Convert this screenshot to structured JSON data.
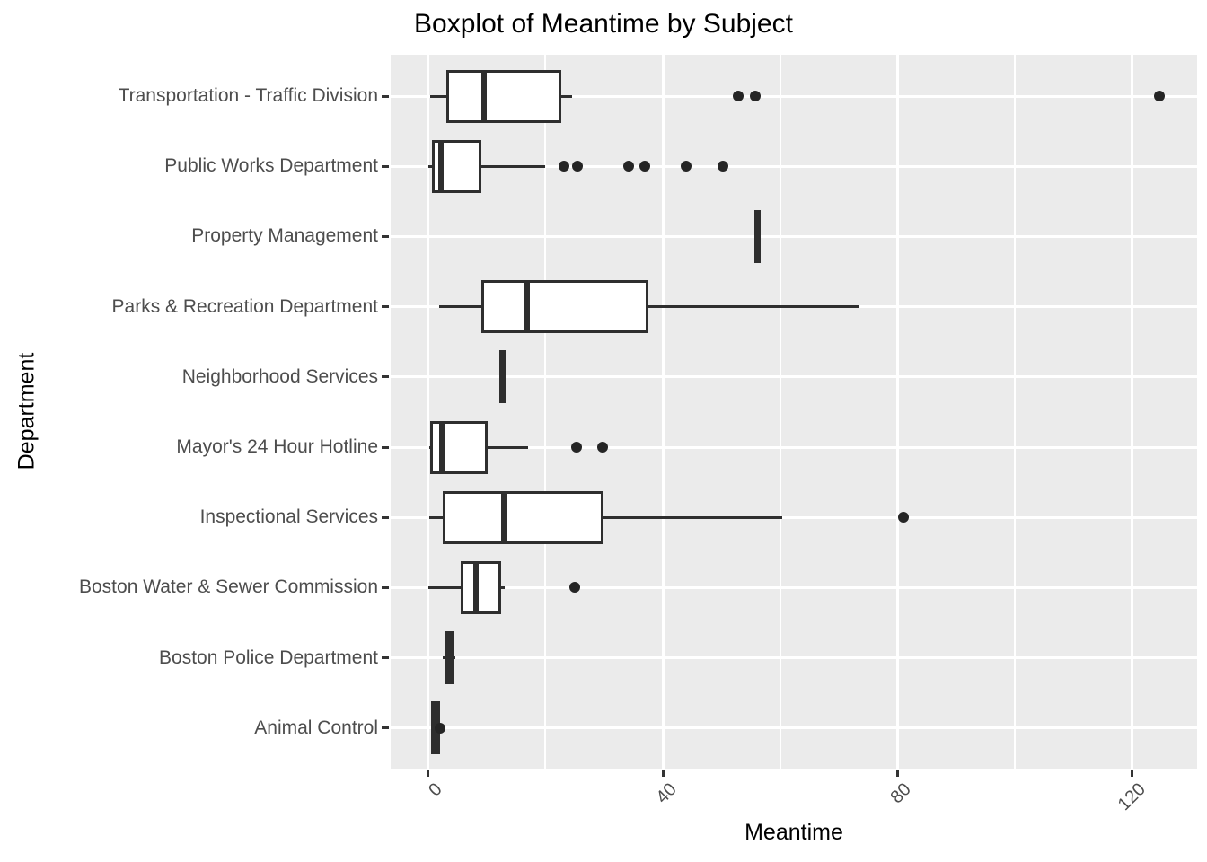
{
  "chart_data": {
    "type": "boxplot",
    "orientation": "horizontal",
    "title": "Boxplot of Meantime by Subject",
    "xlabel": "Meantime",
    "ylabel": "Department",
    "xlim": [
      -6.4,
      131.1
    ],
    "x_major_ticks": [
      0,
      40,
      80,
      120
    ],
    "x_major_tick_labels": [
      "0",
      "40",
      "80",
      "120"
    ],
    "x_minor_gridlines": [
      20,
      60,
      100
    ],
    "grid": true,
    "legend": "none",
    "categories_top_to_bottom": [
      "Transportation - Traffic Division",
      "Public Works Department",
      "Property Management",
      "Parks & Recreation Department",
      "Neighborhood Services",
      "Mayor's 24 Hour Hotline",
      "Inspectional Services",
      "Boston Water & Sewer Commission",
      "Boston Police Department",
      "Animal Control"
    ],
    "series": [
      {
        "category": "Transportation - Traffic Division",
        "min": 0.3,
        "q1": 3.1,
        "median": 9.5,
        "q3": 22.7,
        "max": 24.5,
        "outliers": [
          52.8,
          55.8,
          124.7
        ]
      },
      {
        "category": "Public Works Department",
        "min": 0.1,
        "q1": 0.6,
        "median": 2.1,
        "q3": 9.0,
        "max": 19.9,
        "outliers": [
          23.2,
          25.5,
          34.1,
          37.0,
          43.9,
          50.3
        ]
      },
      {
        "category": "Property Management",
        "min": 56.1,
        "q1": 56.1,
        "median": 56.1,
        "q3": 56.1,
        "max": 56.1,
        "outliers": []
      },
      {
        "category": "Parks & Recreation Department",
        "min": 1.9,
        "q1": 9.0,
        "median": 16.8,
        "q3": 37.6,
        "max": 73.6,
        "outliers": []
      },
      {
        "category": "Neighborhood Services",
        "min": 12.7,
        "q1": 12.7,
        "median": 12.7,
        "q3": 12.7,
        "max": 12.7,
        "outliers": []
      },
      {
        "category": "Mayor's 24 Hour Hotline",
        "min": 0.2,
        "q1": 0.3,
        "median": 2.3,
        "q3": 10.1,
        "max": 17.1,
        "outliers": [
          25.3,
          29.7
        ]
      },
      {
        "category": "Inspectional Services",
        "min": 0.2,
        "q1": 2.5,
        "median": 12.9,
        "q3": 29.9,
        "max": 60.4,
        "outliers": [
          81.1
        ]
      },
      {
        "category": "Boston Water & Sewer Commission",
        "min": 0.0,
        "q1": 5.6,
        "median": 8.2,
        "q3": 12.5,
        "max": 13.0,
        "outliers": [
          25.0
        ]
      },
      {
        "category": "Boston Police Department",
        "min": 2.5,
        "q1": 2.9,
        "median": 3.6,
        "q3": 4.5,
        "max": 4.7,
        "outliers": []
      },
      {
        "category": "Animal Control",
        "min": 1.0,
        "q1": 1.0,
        "median": 1.2,
        "q3": 1.5,
        "max": 1.5,
        "outliers": [
          2.0
        ]
      }
    ],
    "colors": {
      "panel_background": "#EBEBEB",
      "gridline": "#FFFFFF",
      "geom_stroke": "#2E2E2E",
      "outlier_dot": "#252525",
      "axis_text": "#4D4D4D",
      "title_text": "#000000"
    }
  }
}
